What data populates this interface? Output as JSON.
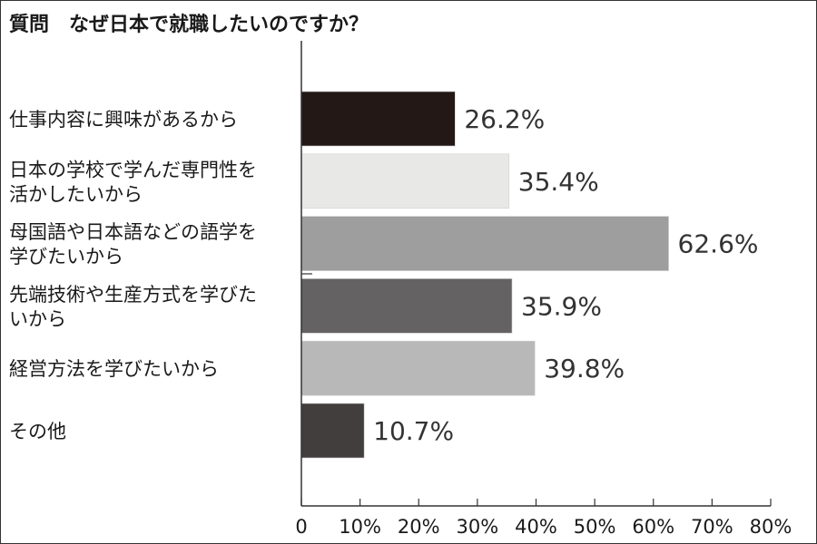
{
  "chart_data": {
    "type": "bar",
    "orientation": "horizontal",
    "title": "質問　なぜ日本で就職したいのですか？",
    "categories": [
      [
        "仕事内容に興味があるから"
      ],
      [
        "日本の学校で学んだ専門性を",
        "活かしたいから"
      ],
      [
        "母国語や日本語などの語学を",
        "学びたいから"
      ],
      [
        "先端技術や生産方式を学びた",
        "いから"
      ],
      [
        "経営方法を学びたいから"
      ],
      [
        "その他"
      ]
    ],
    "values": [
      26.2,
      35.4,
      62.6,
      35.9,
      39.8,
      10.7
    ],
    "value_labels": [
      "26.2%",
      "35.4%",
      "62.6%",
      "35.9%",
      "39.8%",
      "10.7%"
    ],
    "bar_colors": [
      "#231816",
      "#e8e9e7",
      "#9e9e9e",
      "#646262",
      "#b8b8b8",
      "#423e3d"
    ],
    "xlim": [
      0,
      80
    ],
    "x_ticks": [
      0,
      10,
      20,
      30,
      40,
      50,
      60,
      70,
      80
    ],
    "x_tick_labels": [
      "0",
      "10%",
      "20%",
      "30%",
      "40%",
      "50%",
      "60%",
      "70%",
      "80%"
    ],
    "grid": false,
    "legend": "none"
  }
}
